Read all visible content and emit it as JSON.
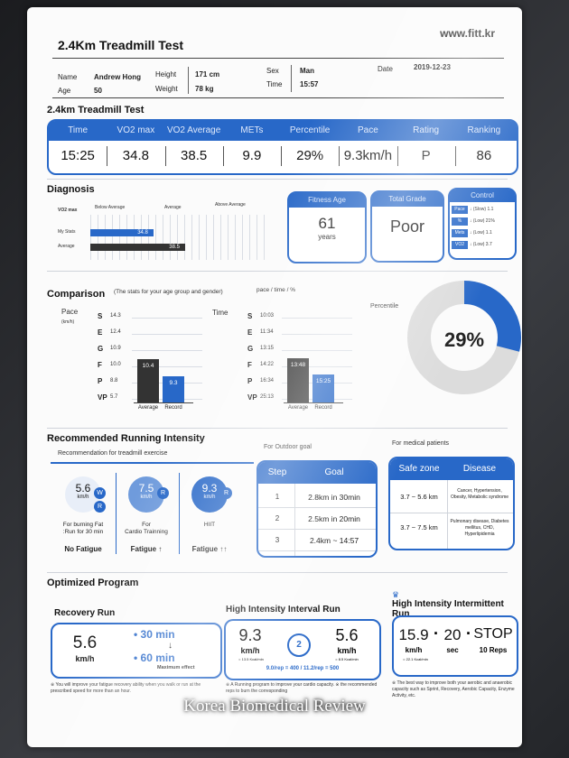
{
  "header": {
    "title": "2.4Km Treadmill Test",
    "website": "www.fitt.kr"
  },
  "profile": {
    "name_label": "Name",
    "name": "Andrew Hong",
    "age_label": "Age",
    "age": "50",
    "height_label": "Height",
    "height": "171 cm",
    "weight_label": "Weight",
    "weight": "78 kg",
    "sex_label": "Sex",
    "sex": "Man",
    "time_label": "Time",
    "time": "15:57",
    "date_label": "Date",
    "date": "2019-12-23"
  },
  "test": {
    "title": "2.4km Treadmill Test",
    "headers": [
      "Time",
      "VO2 max",
      "VO2 Average",
      "METs",
      "Percentile",
      "Pace",
      "Rating",
      "Ranking"
    ],
    "values": [
      "15:25",
      "34.8",
      "38.5",
      "9.9",
      "29%",
      "9.3km/h",
      "P",
      "86"
    ]
  },
  "diagnosis": {
    "title": "Diagnosis",
    "col_labels": [
      "VO2 max",
      "Below Average",
      "Average",
      "Above Average"
    ],
    "rows": [
      {
        "label": "My Stats",
        "value": "34.8",
        "fraction": 0.36
      },
      {
        "label": "Average",
        "value": "38.5",
        "fraction": 0.54
      }
    ],
    "fitness_age_title": "Fitness Age",
    "fitness_age": "61",
    "fitness_age_unit": "years",
    "grade_title": "Total Grade",
    "grade": "Poor",
    "control_title": "Control",
    "control": [
      {
        "k": "Pace",
        "v": "↓ (Slow) 1.1"
      },
      {
        "k": "%",
        "v": "↓ (Low) 21%"
      },
      {
        "k": "Mets",
        "v": "↓ (Low) 1.1"
      },
      {
        "k": "VO2",
        "v": "↓ (Low) 3.7"
      }
    ]
  },
  "comparison": {
    "title": "Comparison",
    "subtitle": "(The stats for your age group and gender)",
    "units": "pace / time / %",
    "pace_label": "Pace",
    "pace_unit": "(km/h)",
    "pace_scale": [
      {
        "g": "S",
        "v": "14.3"
      },
      {
        "g": "E",
        "v": "12.4"
      },
      {
        "g": "G",
        "v": "10.9"
      },
      {
        "g": "F",
        "v": "10.0"
      },
      {
        "g": "P",
        "v": "8.8"
      },
      {
        "g": "VP",
        "v": "5.7"
      }
    ],
    "pace_bars": {
      "average": "10.4",
      "record": "9.3"
    },
    "time_label": "Time",
    "time_scale": [
      {
        "g": "S",
        "v": "10:03"
      },
      {
        "g": "E",
        "v": "11:34"
      },
      {
        "g": "G",
        "v": "13:15"
      },
      {
        "g": "F",
        "v": "14:22"
      },
      {
        "g": "P",
        "v": "16:34"
      },
      {
        "g": "VP",
        "v": "25:13"
      }
    ],
    "time_bars": {
      "average": "13:48",
      "record": "15:25"
    },
    "bar_labels": [
      "Average",
      "Record"
    ],
    "percentile_label": "Percentile",
    "percentile": "29%",
    "percentile_fraction": 0.29
  },
  "intensity": {
    "title": "Recommended Running Intensity",
    "sub_treadmill": "Recommendation for treadmill exercise",
    "sub_outdoor": "For Outdoor goal",
    "sub_medical": "For medical patients",
    "bubbles": [
      {
        "value": "5.6",
        "unit": "km/h",
        "tags": [
          "W",
          "R"
        ],
        "desc": "For burning Fat\n:Run for 30 min",
        "fatigue": "No Fatigue"
      },
      {
        "value": "7.5",
        "unit": "km/h",
        "tags": [
          "R"
        ],
        "desc": "For\nCardio Trainning",
        "fatigue": "Fatigue ↑"
      },
      {
        "value": "9.3",
        "unit": "km/h",
        "tags": [
          "R"
        ],
        "desc": "HIIT",
        "fatigue": "Fatigue ↑↑"
      }
    ],
    "goal_headers": [
      "Step",
      "Goal"
    ],
    "goals": [
      {
        "step": "1",
        "goal": "2.8km in 30min"
      },
      {
        "step": "2",
        "goal": "2.5km in 20min"
      },
      {
        "step": "3",
        "goal": "2.4km ~ 14:57"
      }
    ],
    "disease_headers": [
      "Safe zone",
      "Disease"
    ],
    "diseases": [
      {
        "zone": "3.7 ~ 5.6 km",
        "disease": "Cancer, Hypertension, Obesity, Metabolic syndrome"
      },
      {
        "zone": "3.7 ~ 7.5 km",
        "disease": "Pulmonary disease, Diabetes mellitus, CHD, Hyperlipidemia"
      }
    ]
  },
  "program": {
    "title": "Optimized Program",
    "recovery": {
      "title": "Recovery Run",
      "speed": "5.6",
      "unit": "km/h",
      "min1": "• 30 min",
      "arrow": "↓",
      "min2": "• 60 min",
      "effect": "Maximum effect",
      "note": "※ You will improve your fatigue recovery ability when you walk or run at the prescribed speed for more than an hour."
    },
    "hiit": {
      "title": "High Intensity Interval Run",
      "v1": "9.3",
      "u1": "km/h",
      "k1": "= 13.5 Kcal/min",
      "v2": "5.6",
      "u2": "km/h",
      "k2": "= 8.5 Kcal/min",
      "cycle": "2",
      "formula": "9.0/rep = 400 / 11.2/rep = 500",
      "note": "※ A Running program to improve your cardio capacity. ※ the recommended reps to burn the corresponding"
    },
    "hiit_int": {
      "title": "High Intensity Intermittent Run",
      "v1": "15.9",
      "u1": "km/h",
      "k1": "= 22.1 Kcal/min",
      "v2": "20",
      "u2": "sec",
      "stop": "STOP",
      "reps": "10 Reps",
      "dot": "·",
      "note": "※ The best way to improve both your aerobic and anaerobic capacity such as Sprint, Recovery, Aerobic Capacity, Enzyme Activity, etc."
    }
  },
  "watermark": "Korea Biomedical Review",
  "colors": {
    "accent": "#2868c8",
    "bar_dark": "#333333",
    "bar_gray": "#888888"
  }
}
